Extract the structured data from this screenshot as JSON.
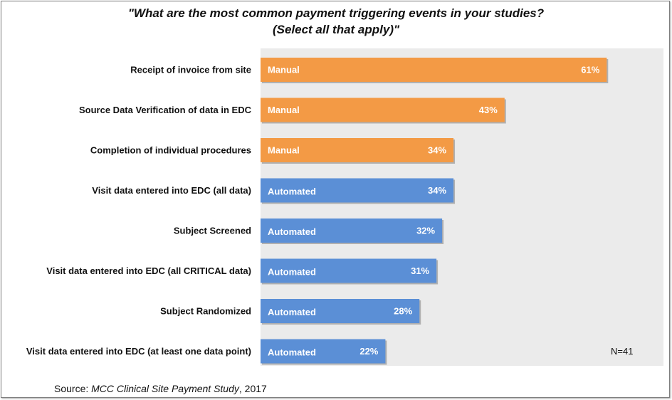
{
  "chart_data": {
    "type": "bar",
    "orientation": "horizontal",
    "title_line1": "\"What are the most common payment triggering events in your studies?",
    "title_line2": "(Select all that apply)\"",
    "categories": [
      "Receipt of invoice from site",
      "Source Data Verification of data in EDC",
      "Completion of individual procedures",
      "Visit data entered into EDC (all data)",
      "Subject Screened",
      "Visit data entered into EDC (all CRITICAL data)",
      "Subject Randomized",
      "Visit data entered into EDC (at least one data point)"
    ],
    "values": [
      61,
      43,
      34,
      34,
      32,
      31,
      28,
      22
    ],
    "value_labels": [
      "61%",
      "43%",
      "34%",
      "34%",
      "32%",
      "31%",
      "28%",
      "22%"
    ],
    "bar_types": [
      "Manual",
      "Manual",
      "Manual",
      "Automated",
      "Automated",
      "Automated",
      "Automated",
      "Automated"
    ],
    "colors": {
      "Manual": "#f39a45",
      "Automated": "#5b8fd6",
      "plot_background": "#ebebeb"
    },
    "xlim": [
      0,
      71
    ],
    "note": "N=41",
    "source_prefix": "Source: ",
    "source_title": "MCC Clinical Site Payment Study",
    "source_suffix": ", 2017"
  }
}
